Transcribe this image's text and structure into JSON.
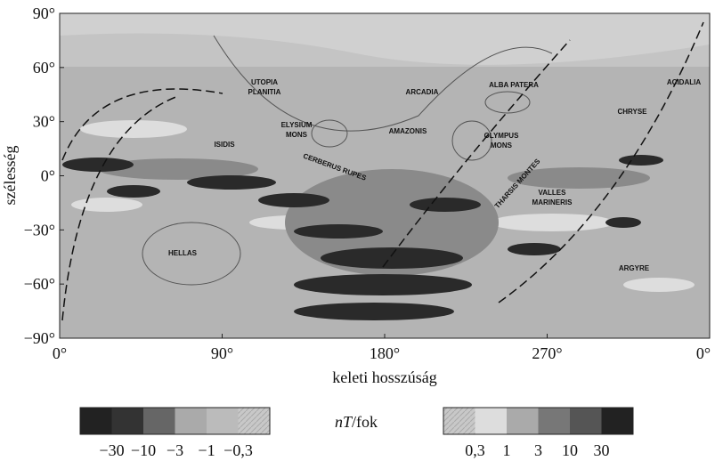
{
  "axes": {
    "y_label": "szélesség",
    "x_label": "keleti hosszúság",
    "y_ticks": [
      "90°",
      "60°",
      "30°",
      "0°",
      "−30°",
      "−60°",
      "−90°"
    ],
    "x_ticks": [
      "0°",
      "90°",
      "180°",
      "270°",
      "0°"
    ]
  },
  "places": [
    {
      "lines": [
        "UTOPIA",
        "PLANITIA"
      ]
    },
    {
      "lines": [
        "ARCADIA"
      ]
    },
    {
      "lines": [
        "ALBA PATERA"
      ]
    },
    {
      "lines": [
        "ACIDALIA"
      ]
    },
    {
      "lines": [
        "ELYSIUM",
        "MONS"
      ]
    },
    {
      "lines": [
        "AMAZONIS"
      ]
    },
    {
      "lines": [
        "OLYMPUS",
        "MONS"
      ]
    },
    {
      "lines": [
        "CHRYSE"
      ]
    },
    {
      "lines": [
        "ISIDIS"
      ]
    },
    {
      "lines": [
        "CERBERUS RUPES"
      ]
    },
    {
      "lines": [
        "THARSIS MONTES"
      ]
    },
    {
      "lines": [
        "VALLES",
        "MARINERIS"
      ]
    },
    {
      "lines": [
        "HELLAS"
      ]
    },
    {
      "lines": [
        "ARGYRE"
      ]
    }
  ],
  "legend": {
    "title_parts": [
      "nT",
      "/fok"
    ],
    "negative_labels": [
      "−30",
      "−10",
      "−3",
      "−1",
      "−0,3"
    ],
    "positive_labels": [
      "0,3",
      "1",
      "3",
      "10",
      "30"
    ]
  }
}
